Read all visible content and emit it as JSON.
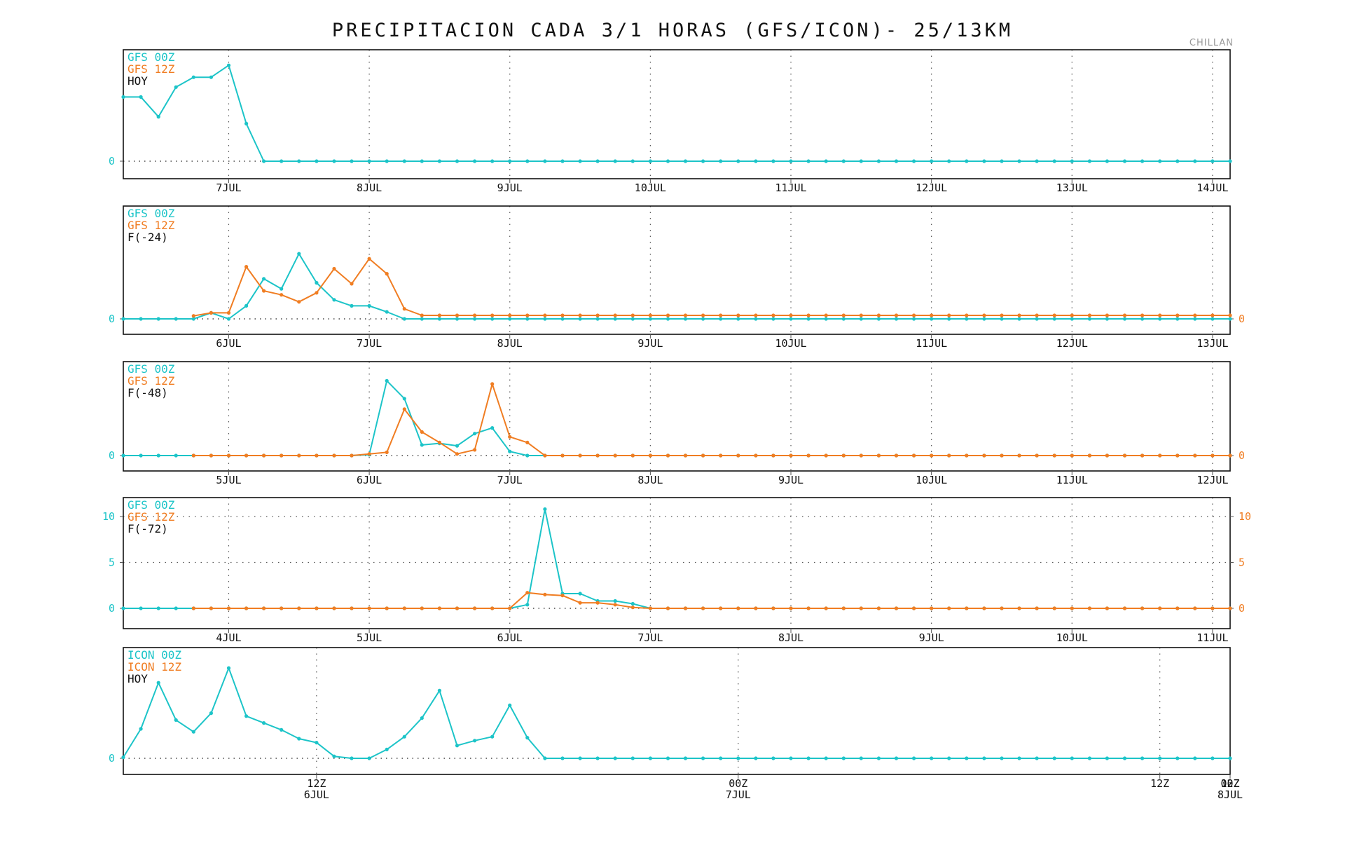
{
  "title": "PRECIPITACION CADA 3/1 HORAS (GFS/ICON)- 25/13KM",
  "location": "CHILLAN",
  "colors": {
    "series_a": "#1cc4c8",
    "series_b": "#f07d22",
    "label": "#111111"
  },
  "chart_data": [
    {
      "type": "line",
      "legend": [
        "GFS 00Z",
        "GFS 12Z",
        "HOY"
      ],
      "x_ticks": [
        "7JUL",
        "8JUL",
        "9JUL",
        "10JUL",
        "11JUL",
        "12JUL",
        "13JUL",
        "14JUL"
      ],
      "x_range": [
        0,
        63
      ],
      "first_tick_index": 6,
      "points_per_day": 8,
      "ylim": [
        0,
        10
      ],
      "y_ticks_left": [
        "0"
      ],
      "y_ticks_right": [],
      "series": [
        {
          "values": [
            6.5,
            6.5,
            4.5,
            7.5,
            8.5,
            8.5,
            9.7,
            3.8,
            0,
            0,
            0,
            0,
            0,
            0,
            0,
            0,
            0,
            0,
            0,
            0,
            0,
            0,
            0,
            0,
            0,
            0,
            0,
            0,
            0,
            0,
            0,
            0,
            0,
            0,
            0,
            0,
            0,
            0,
            0,
            0,
            0,
            0,
            0,
            0,
            0,
            0,
            0,
            0,
            0,
            0,
            0,
            0,
            0,
            0,
            0,
            0,
            0,
            0,
            0,
            0,
            0,
            0,
            0,
            0
          ]
        }
      ]
    },
    {
      "type": "line",
      "legend": [
        "GFS 00Z",
        "GFS 12Z",
        "F(-24)"
      ],
      "x_ticks": [
        "6JUL",
        "7JUL",
        "8JUL",
        "9JUL",
        "10JUL",
        "11JUL",
        "12JUL",
        "13JUL"
      ],
      "x_range": [
        0,
        63
      ],
      "first_tick_index": 6,
      "points_per_day": 8,
      "ylim": [
        0,
        10
      ],
      "y_ticks_left": [
        "0"
      ],
      "y_ticks_right": [
        "0"
      ],
      "series": [
        {
          "values": [
            0,
            0,
            0,
            0,
            0,
            0.6,
            0,
            1.3,
            4.0,
            3.0,
            6.5,
            3.6,
            1.9,
            1.3,
            1.3,
            0.7,
            0,
            0,
            0,
            0,
            0,
            0,
            0,
            0,
            0,
            0,
            0,
            0,
            0,
            0,
            0,
            0,
            0,
            0,
            0,
            0,
            0,
            0,
            0,
            0,
            0,
            0,
            0,
            0,
            0,
            0,
            0,
            0,
            0,
            0,
            0,
            0,
            0,
            0,
            0,
            0,
            0,
            0,
            0,
            0,
            0,
            0,
            0,
            0
          ]
        },
        {
          "start": 4,
          "values": [
            0.3,
            0.6,
            0.6,
            5.2,
            2.8,
            2.4,
            1.7,
            2.6,
            5.0,
            3.5,
            6.0,
            4.5,
            1.0,
            0.35,
            0.35,
            0.35,
            0.35,
            0.35,
            0.35,
            0.35,
            0.35,
            0.35,
            0.35,
            0.35,
            0.35,
            0.35,
            0.35,
            0.35,
            0.35,
            0.35,
            0.35,
            0.35,
            0.35,
            0.35,
            0.35,
            0.35,
            0.35,
            0.35,
            0.35,
            0.35,
            0.35,
            0.35,
            0.35,
            0.35,
            0.35,
            0.35,
            0.35,
            0.35,
            0.35,
            0.35,
            0.35,
            0.35,
            0.35,
            0.35,
            0.35,
            0.35,
            0.35,
            0.35,
            0.35,
            0.35
          ]
        }
      ]
    },
    {
      "type": "line",
      "legend": [
        "GFS 00Z",
        "GFS 12Z",
        "F(-48)"
      ],
      "x_ticks": [
        "5JUL",
        "6JUL",
        "7JUL",
        "8JUL",
        "9JUL",
        "10JUL",
        "11JUL",
        "12JUL"
      ],
      "x_range": [
        0,
        63
      ],
      "first_tick_index": 6,
      "points_per_day": 8,
      "ylim": [
        0,
        10
      ],
      "y_ticks_left": [
        "0"
      ],
      "y_ticks_right": [
        "0"
      ],
      "series": [
        {
          "values": [
            0,
            0,
            0,
            0,
            0,
            0,
            0,
            0,
            0,
            0,
            0,
            0,
            0,
            0,
            0.1,
            9.2,
            7.0,
            1.3,
            1.5,
            1.2,
            2.7,
            3.4,
            0.5,
            0,
            0,
            0,
            0,
            0,
            0,
            0,
            0,
            0,
            0,
            0,
            0,
            0,
            0,
            0,
            0,
            0,
            0,
            0,
            0,
            0,
            0,
            0,
            0,
            0,
            0,
            0,
            0,
            0,
            0,
            0,
            0,
            0,
            0,
            0,
            0,
            0,
            0,
            0,
            0,
            0
          ]
        },
        {
          "start": 4,
          "values": [
            0,
            0,
            0,
            0,
            0,
            0,
            0,
            0,
            0,
            0,
            0.2,
            0.4,
            5.7,
            2.9,
            1.6,
            0.2,
            0.7,
            8.8,
            2.3,
            1.6,
            0,
            0,
            0,
            0,
            0,
            0,
            0,
            0,
            0,
            0,
            0,
            0,
            0,
            0,
            0,
            0,
            0,
            0,
            0,
            0,
            0,
            0,
            0,
            0,
            0,
            0,
            0,
            0,
            0,
            0,
            0,
            0,
            0,
            0,
            0,
            0,
            0,
            0,
            0,
            0
          ]
        }
      ]
    },
    {
      "type": "line",
      "legend": [
        "GFS 00Z",
        "GFS 12Z",
        "F(-72)"
      ],
      "x_ticks": [
        "4JUL",
        "5JUL",
        "6JUL",
        "7JUL",
        "8JUL",
        "9JUL",
        "10JUL",
        "11JUL"
      ],
      "x_range": [
        0,
        63
      ],
      "first_tick_index": 6,
      "points_per_day": 8,
      "ylim": [
        -2,
        12
      ],
      "y_ticks_left": [
        "0",
        "5",
        "10"
      ],
      "y_ticks_right": [
        "0",
        "5",
        "10"
      ],
      "series": [
        {
          "values": [
            0,
            0,
            0,
            0,
            0,
            0,
            0,
            0,
            0,
            0,
            0,
            0,
            0,
            0,
            0,
            0,
            0,
            0,
            0,
            0,
            0,
            0,
            0,
            0.4,
            10.8,
            1.6,
            1.6,
            0.8,
            0.8,
            0.5,
            0,
            0,
            0,
            0,
            0,
            0,
            0,
            0,
            0,
            0,
            0,
            0,
            0,
            0,
            0,
            0,
            0,
            0,
            0,
            0,
            0,
            0,
            0,
            0,
            0,
            0,
            0,
            0,
            0,
            0,
            0,
            0,
            0,
            0
          ]
        },
        {
          "start": 4,
          "values": [
            0,
            0,
            0,
            0,
            0,
            0,
            0,
            0,
            0,
            0,
            0,
            0,
            0,
            0,
            0,
            0,
            0,
            0,
            0,
            1.7,
            1.5,
            1.4,
            0.6,
            0.6,
            0.4,
            0.1,
            0,
            0,
            0,
            0,
            0,
            0,
            0,
            0,
            0,
            0,
            0,
            0,
            0,
            0,
            0,
            0,
            0,
            0,
            0,
            0,
            0,
            0,
            0,
            0,
            0,
            0,
            0,
            0,
            0,
            0,
            0,
            0,
            0,
            0
          ]
        }
      ]
    },
    {
      "type": "line",
      "legend": [
        "ICON 00Z",
        "ICON 12Z",
        "HOY"
      ],
      "x_ticks": [
        [
          "12Z",
          "6JUL"
        ],
        [
          "00Z",
          "7JUL"
        ],
        [
          "12Z",
          ""
        ],
        [
          "00Z",
          "8JUL"
        ],
        [
          "12Z",
          ""
        ]
      ],
      "x_range": [
        0,
        63
      ],
      "first_tick_index": 11,
      "points_per_day": 24,
      "ylim": [
        0,
        10
      ],
      "y_ticks_left": [
        "0"
      ],
      "y_ticks_right": [],
      "series": [
        {
          "values": [
            0.1,
            3.0,
            7.7,
            3.9,
            2.7,
            4.6,
            9.2,
            4.3,
            3.6,
            2.9,
            2.0,
            1.6,
            0.2,
            0,
            0,
            0.9,
            2.2,
            4.1,
            6.9,
            1.3,
            1.8,
            2.2,
            5.4,
            2.1,
            0,
            0,
            0,
            0,
            0,
            0,
            0,
            0,
            0,
            0,
            0,
            0,
            0,
            0,
            0,
            0,
            0,
            0,
            0,
            0,
            0,
            0,
            0,
            0,
            0,
            0,
            0,
            0,
            0,
            0,
            0,
            0,
            0,
            0,
            0,
            0,
            0,
            0,
            0,
            0
          ]
        }
      ]
    }
  ]
}
